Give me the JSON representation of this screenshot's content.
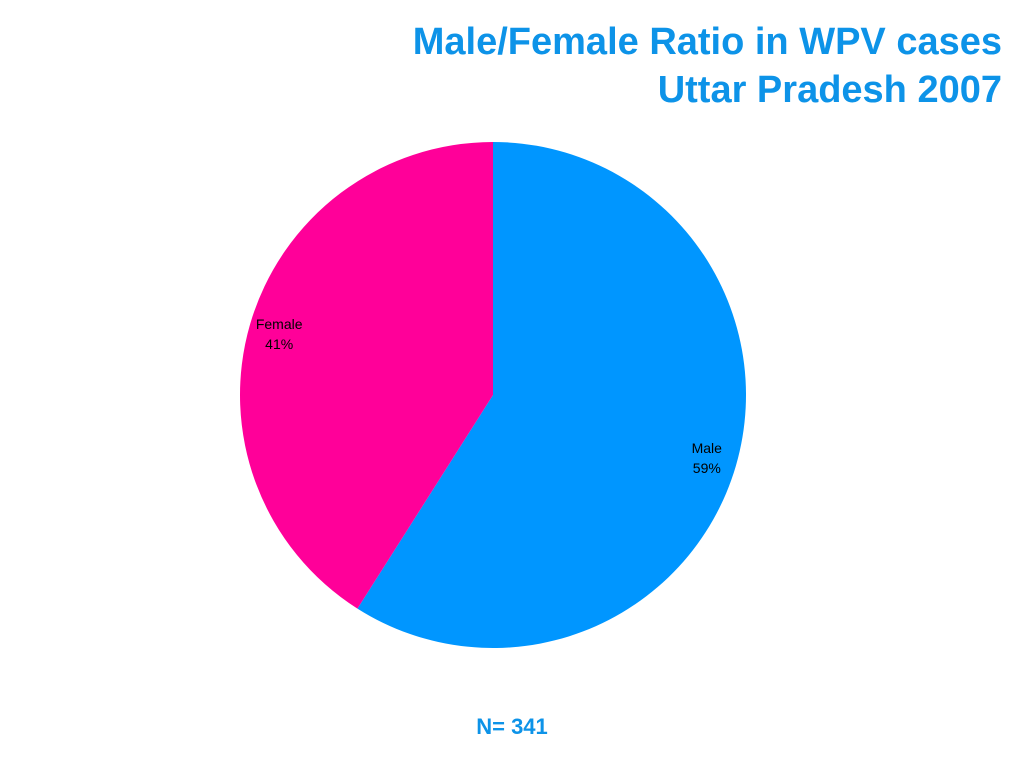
{
  "title_line1": "Male/Female Ratio in WPV cases",
  "title_line2": "Uttar Pradesh 2007",
  "footnote": "N= 341",
  "colors": {
    "title": "#0d93e8",
    "male": "#0096ff",
    "female": "#ff0099"
  },
  "chart_data": {
    "type": "pie",
    "slices": [
      {
        "label": "Male",
        "value": 59,
        "display": "59%",
        "color": "#0096ff"
      },
      {
        "label": "Female",
        "value": 41,
        "display": "41%",
        "color": "#ff0099"
      }
    ],
    "start": "12 o'clock",
    "direction": "clockwise",
    "legend": "none"
  }
}
